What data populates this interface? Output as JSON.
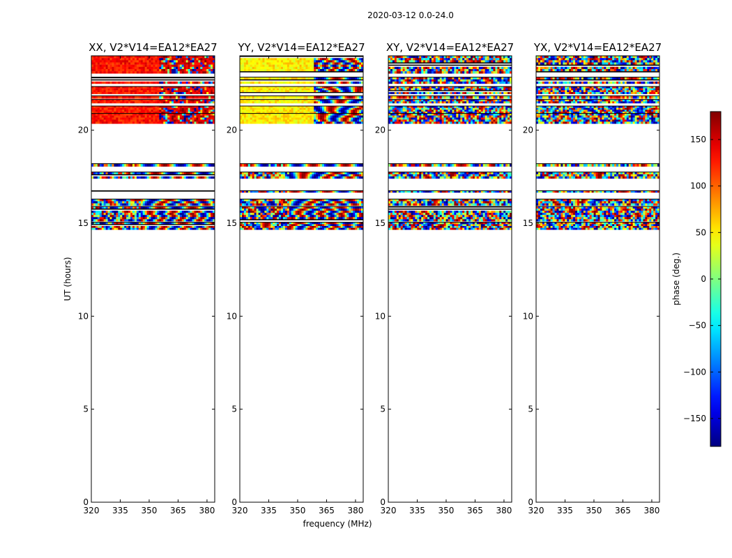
{
  "chart_data": {
    "type": "heatmap",
    "suptitle": "2020-03-12 0.0-24.0",
    "xlabel": "frequency (MHz)",
    "ylabel": "UT (hours)",
    "xlim": [
      320,
      384
    ],
    "ylim": [
      0,
      24
    ],
    "xticks": [
      320,
      335,
      350,
      365,
      380
    ],
    "yticks": [
      0,
      5,
      10,
      15,
      20
    ],
    "colorbar": {
      "label": "phase (deg.)",
      "range": [
        -180,
        180
      ],
      "ticks": [
        150,
        100,
        50,
        0,
        -50,
        -100,
        -150
      ],
      "tick_labels": [
        "150",
        "100",
        "50",
        "0",
        "−50",
        "−100",
        "−150"
      ],
      "colormap": "jet"
    },
    "panels": [
      {
        "title": "XX, V2*V14=EA12*EA27",
        "polarization": "XX",
        "style": "xx"
      },
      {
        "title": "YY, V2*V14=EA12*EA27",
        "polarization": "YY",
        "style": "yy"
      },
      {
        "title": "XY, V2*V14=EA12*EA27",
        "polarization": "XY",
        "style": "cross"
      },
      {
        "title": "YX, V2*V14=EA12*EA27",
        "polarization": "YX",
        "style": "cross"
      }
    ],
    "data_blocks_ut_hours": [
      [
        23.05,
        24.0
      ],
      [
        22.5,
        22.85
      ],
      [
        21.95,
        22.35
      ],
      [
        21.7,
        21.85
      ],
      [
        21.45,
        21.65
      ],
      [
        20.9,
        21.3
      ],
      [
        20.35,
        20.9
      ],
      [
        18.05,
        18.2
      ],
      [
        17.4,
        17.75
      ],
      [
        16.65,
        16.75
      ],
      [
        15.95,
        16.3
      ],
      [
        15.1,
        15.9
      ],
      [
        14.65,
        15.05
      ]
    ],
    "data_blocks_panel_y_band": {
      "range": [
        14.55,
        15.3
      ],
      "ut_hours": [
        [
          14.9,
          15.1
        ],
        [
          14.65,
          14.85
        ]
      ]
    }
  }
}
